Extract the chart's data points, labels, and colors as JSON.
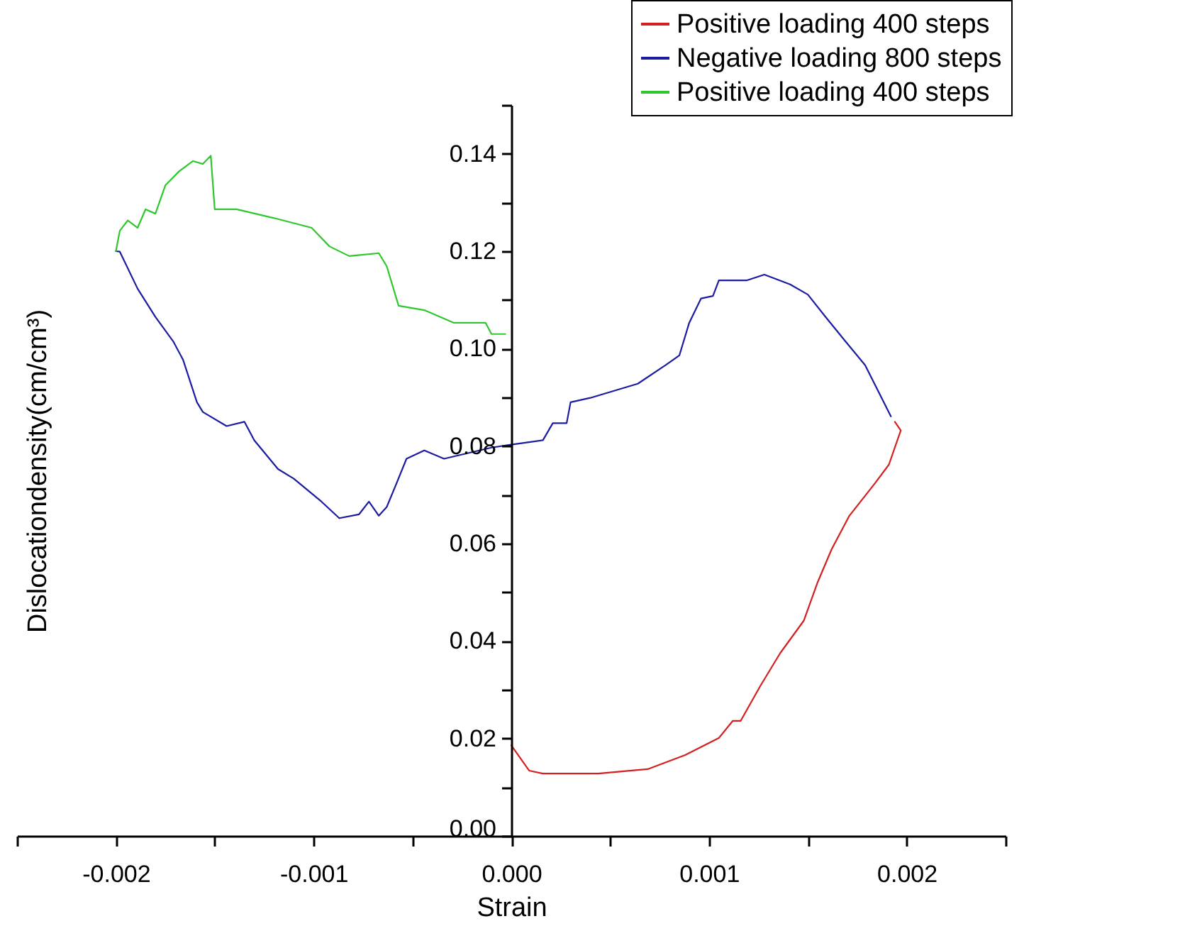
{
  "chart_data": {
    "type": "line",
    "xlabel": "Strain",
    "ylabel": "Dislocationdensity(cm/cm³)",
    "legend": "top right",
    "grid": false,
    "xlim": [
      -0.0025,
      0.0025
    ],
    "ylim": [
      0,
      0.15
    ],
    "xticks": [
      {
        "value": -0.0025,
        "label": null
      },
      {
        "value": -0.002,
        "label": "-0.002"
      },
      {
        "value": -0.0015,
        "label": null
      },
      {
        "value": -0.001,
        "label": "-0.001"
      },
      {
        "value": -0.0005,
        "label": null
      },
      {
        "value": 0,
        "label": "0.000"
      },
      {
        "value": 0.0005,
        "label": null
      },
      {
        "value": 0.001,
        "label": "0.001"
      },
      {
        "value": 0.0015,
        "label": null
      },
      {
        "value": 0.002,
        "label": "0.002"
      },
      {
        "value": 0.0025,
        "label": null
      }
    ],
    "yticks": [
      {
        "value": 0,
        "label": "0.00"
      },
      {
        "value": 0.01,
        "label": null
      },
      {
        "value": 0.02,
        "label": "0.02"
      },
      {
        "value": 0.03,
        "label": null
      },
      {
        "value": 0.04,
        "label": "0.04"
      },
      {
        "value": 0.05,
        "label": null
      },
      {
        "value": 0.06,
        "label": "0.06"
      },
      {
        "value": 0.07,
        "label": null
      },
      {
        "value": 0.08,
        "label": "0.08"
      },
      {
        "value": 0.09,
        "label": null
      },
      {
        "value": 0.1,
        "label": "0.10"
      },
      {
        "value": 0.11,
        "label": null
      },
      {
        "value": 0.12,
        "label": "0.12"
      },
      {
        "value": 0.13,
        "label": null
      },
      {
        "value": 0.14,
        "label": "0.14"
      },
      {
        "value": 0.15,
        "label": null
      }
    ],
    "series": [
      {
        "name": "Positive loading 400 steps",
        "color": "#d42020",
        "x": [
          0,
          9e-05,
          0.00016,
          0.00044,
          0.00069,
          0.00088,
          0.00105,
          0.00112,
          0.00116,
          0.00126,
          0.00136,
          0.00148,
          0.00155,
          0.00162,
          0.00171,
          0.00184,
          0.00191,
          0.00197,
          0.00194
        ],
        "values": [
          0.0186,
          0.0134,
          0.0128,
          0.0128,
          0.0137,
          0.0166,
          0.0201,
          0.0236,
          0.0236,
          0.0308,
          0.0375,
          0.0442,
          0.0521,
          0.0588,
          0.0657,
          0.0724,
          0.0762,
          0.0832,
          0.085
        ]
      },
      {
        "name": "Negative loading 800 steps",
        "color": "#1c1ca0",
        "x": [
          0.00192,
          0.00179,
          0.00169,
          0.00159,
          0.0015,
          0.00141,
          0.00128,
          0.00119,
          0.00105,
          0.00102,
          0.00096,
          0.0009,
          0.00085,
          0.00078,
          0.00064,
          0.0004,
          0.0003,
          0.00028,
          0.00021,
          0.00016,
          0,
          -0.0001,
          -0.00034,
          -0.00044,
          -0.00053,
          -0.00058,
          -0.00063,
          -0.00067,
          -0.00072,
          -0.00077,
          -0.00087,
          -0.00096,
          -0.0011,
          -0.00118,
          -0.0013,
          -0.00135,
          -0.00144,
          -0.00156,
          -0.00159,
          -0.00166,
          -0.00171,
          -0.0018,
          -0.00189,
          -0.00198,
          -0.002
        ],
        "values": [
          0.0861,
          0.0966,
          0.1015,
          0.1065,
          0.1111,
          0.1132,
          0.1152,
          0.114,
          0.114,
          0.1108,
          0.1103,
          0.1053,
          0.0986,
          0.0966,
          0.0928,
          0.0899,
          0.089,
          0.0847,
          0.0847,
          0.0812,
          0.0803,
          0.0797,
          0.0774,
          0.0791,
          0.0774,
          0.0724,
          0.0675,
          0.0657,
          0.0686,
          0.066,
          0.0652,
          0.0686,
          0.0733,
          0.0753,
          0.0812,
          0.085,
          0.0841,
          0.087,
          0.089,
          0.0977,
          0.1015,
          0.1065,
          0.1123,
          0.1199,
          0.12
        ]
      },
      {
        "name": "Positive loading 400 steps",
        "color": "#2ec82e",
        "x": [
          -0.002,
          -0.00198,
          -0.00194,
          -0.00189,
          -0.00185,
          -0.0018,
          -0.00175,
          -0.00168,
          -0.00161,
          -0.00156,
          -0.00152,
          -0.0015,
          -0.00139,
          -0.0012,
          -0.00101,
          -0.00092,
          -0.00082,
          -0.00067,
          -0.00063,
          -0.00057,
          -0.00044,
          -0.00029,
          -0.00013,
          -0.0001,
          -3e-05
        ],
        "values": [
          0.12,
          0.1242,
          0.1263,
          0.1248,
          0.1286,
          0.1277,
          0.1335,
          0.1364,
          0.1385,
          0.1379,
          0.1396,
          0.1286,
          0.1286,
          0.1268,
          0.1248,
          0.121,
          0.119,
          0.1196,
          0.1169,
          0.1088,
          0.1079,
          0.1053,
          0.1053,
          0.103,
          0.103
        ]
      }
    ]
  }
}
